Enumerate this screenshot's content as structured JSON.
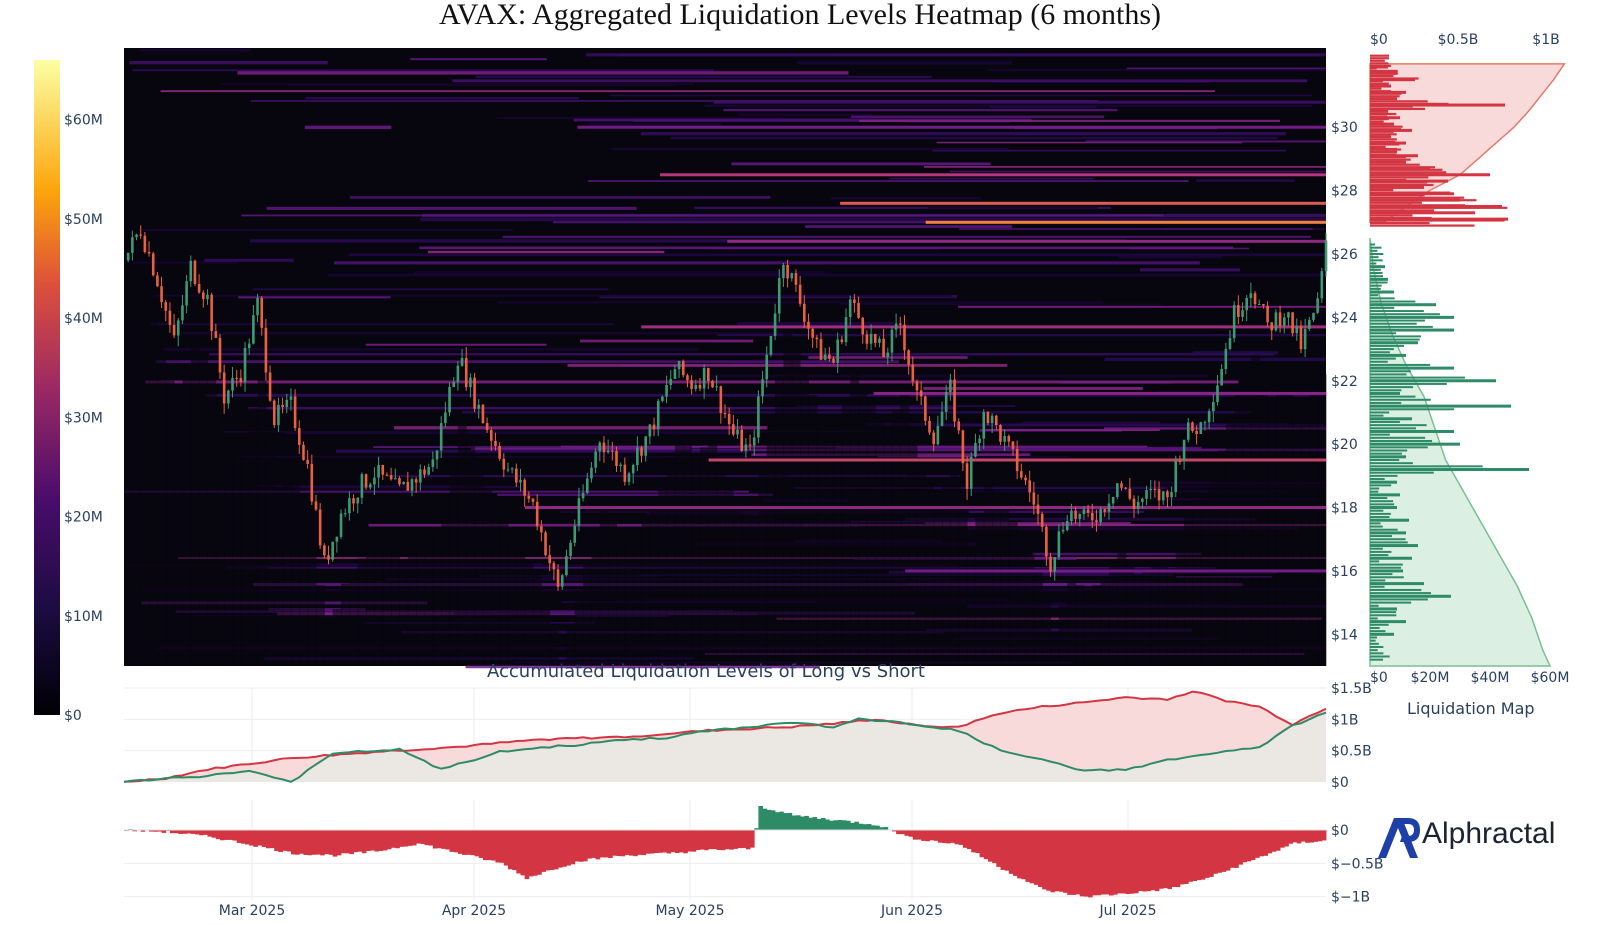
{
  "title": "AVAX: Aggregated Liquidation Levels Heatmap (6 months)",
  "subtitle": "Accumulated Liquidation Levels of Long vs Short",
  "side_panel_title": "Liquidation Map",
  "logo_text": "Alphractal",
  "colors": {
    "long": "#2e8b67",
    "short": "#d33642",
    "short_fill": "#f8dada",
    "long_fill": "#dcefe3",
    "cum_area": "#ebe8e3",
    "heat_bg": "#07050e",
    "candle_up": "#3d9a72",
    "candle_down": "#e8623f"
  },
  "chart_data": [
    {
      "type": "heatmap",
      "name": "liquidation-heatmap-with-price",
      "x_ticks": [
        "Mar 2025",
        "Apr 2025",
        "May 2025",
        "Jun 2025",
        "Jul 2025"
      ],
      "y_ticks": [
        "$14",
        "$16",
        "$18",
        "$20",
        "$22",
        "$24",
        "$26",
        "$28",
        "$30"
      ],
      "ylim": [
        13,
        32.5
      ],
      "colorbar": {
        "ticks": [
          "$0",
          "$10M",
          "$20M",
          "$30M",
          "$40M",
          "$50M",
          "$60M"
        ],
        "range": [
          0,
          66
        ],
        "colorscale": [
          "#000004",
          "#2c0b5a",
          "#6a1a8a",
          "#b5367a",
          "#ec6b43",
          "#fbb42c",
          "#fcffa4"
        ]
      },
      "price_series_key_points": [
        [
          0,
          25.8
        ],
        [
          2,
          26.8
        ],
        [
          4,
          25.2
        ],
        [
          6,
          23.2
        ],
        [
          8,
          25.6
        ],
        [
          10,
          24.6
        ],
        [
          12,
          21.5
        ],
        [
          14,
          22.3
        ],
        [
          16,
          24.4
        ],
        [
          18,
          20.8
        ],
        [
          20,
          21.2
        ],
        [
          22,
          19.3
        ],
        [
          24,
          16.2
        ],
        [
          26,
          17.8
        ],
        [
          28,
          18.6
        ],
        [
          30,
          19.1
        ],
        [
          33,
          18.5
        ],
        [
          37,
          19.4
        ],
        [
          40,
          22.8
        ],
        [
          43,
          20.8
        ],
        [
          46,
          19.2
        ],
        [
          49,
          18.1
        ],
        [
          52,
          15.4
        ],
        [
          54,
          17.5
        ],
        [
          57,
          20.2
        ],
        [
          60,
          19.1
        ],
        [
          63,
          20.4
        ],
        [
          66,
          22.4
        ],
        [
          68,
          21.9
        ],
        [
          70,
          22.3
        ],
        [
          73,
          20.3
        ],
        [
          75,
          19.7
        ],
        [
          77,
          22.8
        ],
        [
          79,
          25.9
        ],
        [
          81,
          24.5
        ],
        [
          83,
          23.0
        ],
        [
          85,
          22.6
        ],
        [
          87,
          24.5
        ],
        [
          89,
          23.5
        ],
        [
          91,
          22.8
        ],
        [
          93,
          23.8
        ],
        [
          95,
          21.5
        ],
        [
          97,
          20.3
        ],
        [
          99,
          21.7
        ],
        [
          101,
          18.8
        ],
        [
          103,
          21.1
        ],
        [
          105,
          20.3
        ],
        [
          107,
          19.3
        ],
        [
          109,
          18.2
        ],
        [
          111,
          16.3
        ],
        [
          113,
          17.9
        ],
        [
          115,
          17.6
        ],
        [
          117,
          17.9
        ],
        [
          119,
          18.8
        ],
        [
          121,
          18.1
        ],
        [
          123,
          18.4
        ],
        [
          125,
          18.3
        ],
        [
          127,
          20.3
        ],
        [
          129,
          20.6
        ],
        [
          131,
          22.0
        ],
        [
          133,
          24.1
        ],
        [
          135,
          25.0
        ],
        [
          137,
          23.7
        ],
        [
          139,
          24.2
        ],
        [
          141,
          23.1
        ],
        [
          143,
          24.4
        ],
        [
          144,
          26.2
        ]
      ],
      "hot_levels": [
        {
          "price": 27.0,
          "intensity": 0.72
        },
        {
          "price": 27.6,
          "intensity": 0.62
        },
        {
          "price": 28.5,
          "intensity": 0.5
        },
        {
          "price": 26.4,
          "intensity": 0.42
        },
        {
          "price": 23.7,
          "intensity": 0.45
        },
        {
          "price": 21.6,
          "intensity": 0.4
        },
        {
          "price": 19.5,
          "intensity": 0.55
        },
        {
          "price": 18.0,
          "intensity": 0.42
        },
        {
          "price": 16.0,
          "intensity": 0.35
        },
        {
          "price": 30.0,
          "intensity": 0.35
        }
      ]
    },
    {
      "type": "bar",
      "name": "liquidation-map",
      "orientation": "horizontal",
      "x_ticks_top": [
        "$0",
        "$0.5B",
        "$1B"
      ],
      "x_ticks_bottom": [
        "$0",
        "$20M",
        "$40M",
        "$60M"
      ],
      "xlim": [
        0,
        66
      ],
      "short_levels": [
        [
          27.1,
          46
        ],
        [
          27.3,
          35
        ],
        [
          27.5,
          44
        ],
        [
          27.7,
          30
        ],
        [
          27.9,
          28
        ],
        [
          28.1,
          18
        ],
        [
          28.3,
          26
        ],
        [
          28.5,
          40
        ],
        [
          28.7,
          20
        ],
        [
          28.9,
          12
        ],
        [
          29.1,
          16
        ],
        [
          29.3,
          9
        ],
        [
          29.5,
          12
        ],
        [
          29.7,
          7
        ],
        [
          29.9,
          14
        ],
        [
          30.1,
          8
        ],
        [
          30.3,
          10
        ],
        [
          30.5,
          6
        ],
        [
          30.7,
          45
        ],
        [
          30.9,
          9
        ],
        [
          31.1,
          12
        ],
        [
          31.3,
          7
        ],
        [
          31.5,
          15
        ],
        [
          31.7,
          9
        ],
        [
          31.9,
          6
        ]
      ],
      "long_levels": [
        [
          14.0,
          8
        ],
        [
          14.4,
          12
        ],
        [
          14.8,
          9
        ],
        [
          15.2,
          27
        ],
        [
          15.6,
          18
        ],
        [
          16.0,
          11
        ],
        [
          16.4,
          14
        ],
        [
          16.8,
          16
        ],
        [
          17.2,
          12
        ],
        [
          17.6,
          13
        ],
        [
          18.0,
          9
        ],
        [
          18.4,
          10
        ],
        [
          18.8,
          9
        ],
        [
          19.2,
          53
        ],
        [
          19.6,
          12
        ],
        [
          20.0,
          30
        ],
        [
          20.4,
          28
        ],
        [
          20.8,
          14
        ],
        [
          21.2,
          47
        ],
        [
          21.6,
          10
        ],
        [
          22.0,
          42
        ],
        [
          22.4,
          28
        ],
        [
          22.8,
          12
        ],
        [
          23.2,
          16
        ],
        [
          23.6,
          28
        ],
        [
          24.0,
          28
        ],
        [
          24.4,
          22
        ],
        [
          24.8,
          8
        ],
        [
          25.2,
          6
        ],
        [
          25.6,
          5
        ]
      ],
      "short_cumulative": [
        [
          27.0,
          0.08
        ],
        [
          27.5,
          0.2
        ],
        [
          28.0,
          0.33
        ],
        [
          28.5,
          0.5
        ],
        [
          29.0,
          0.6
        ],
        [
          29.5,
          0.7
        ],
        [
          30.0,
          0.8
        ],
        [
          30.5,
          0.88
        ],
        [
          31.0,
          0.95
        ],
        [
          31.5,
          1.02
        ],
        [
          32.0,
          1.08
        ]
      ],
      "long_cumulative": [
        [
          26.5,
          0.0
        ],
        [
          25.5,
          0.02
        ],
        [
          24.5,
          0.06
        ],
        [
          23.5,
          0.12
        ],
        [
          22.5,
          0.2
        ],
        [
          21.5,
          0.3
        ],
        [
          20.5,
          0.36
        ],
        [
          19.5,
          0.42
        ],
        [
          18.5,
          0.52
        ],
        [
          17.5,
          0.62
        ],
        [
          16.5,
          0.72
        ],
        [
          15.5,
          0.82
        ],
        [
          14.5,
          0.9
        ],
        [
          13.5,
          0.96
        ],
        [
          13.0,
          1.0
        ]
      ]
    },
    {
      "type": "line",
      "name": "accumulated-long-vs-short",
      "y_ticks": [
        "$0",
        "$0.5B",
        "$1B",
        "$1.5B"
      ],
      "ylim": [
        0,
        1.5
      ],
      "series": [
        {
          "key": "short",
          "values": [
            [
              0,
              0
            ],
            [
              5,
              0.06
            ],
            [
              10,
              0.2
            ],
            [
              20,
              0.38
            ],
            [
              30,
              0.48
            ],
            [
              40,
              0.56
            ],
            [
              50,
              0.68
            ],
            [
              60,
              0.72
            ],
            [
              70,
              0.82
            ],
            [
              80,
              0.88
            ],
            [
              85,
              0.93
            ],
            [
              90,
              1.0
            ],
            [
              95,
              0.9
            ],
            [
              100,
              0.88
            ],
            [
              105,
              1.1
            ],
            [
              110,
              1.2
            ],
            [
              115,
              1.27
            ],
            [
              120,
              1.35
            ],
            [
              125,
              1.32
            ],
            [
              128,
              1.45
            ],
            [
              132,
              1.3
            ],
            [
              136,
              1.2
            ],
            [
              140,
              0.92
            ],
            [
              144,
              1.18
            ]
          ]
        },
        {
          "key": "long",
          "values": [
            [
              0,
              0
            ],
            [
              5,
              0.05
            ],
            [
              10,
              0.1
            ],
            [
              15,
              0.18
            ],
            [
              20,
              0.0
            ],
            [
              25,
              0.45
            ],
            [
              28,
              0.48
            ],
            [
              33,
              0.52
            ],
            [
              38,
              0.2
            ],
            [
              45,
              0.48
            ],
            [
              50,
              0.55
            ],
            [
              55,
              0.6
            ],
            [
              60,
              0.68
            ],
            [
              65,
              0.7
            ],
            [
              70,
              0.82
            ],
            [
              75,
              0.88
            ],
            [
              80,
              0.95
            ],
            [
              85,
              0.88
            ],
            [
              88,
              1.0
            ],
            [
              93,
              0.95
            ],
            [
              100,
              0.82
            ],
            [
              105,
              0.5
            ],
            [
              110,
              0.35
            ],
            [
              115,
              0.18
            ],
            [
              120,
              0.2
            ],
            [
              125,
              0.35
            ],
            [
              130,
              0.45
            ],
            [
              136,
              0.55
            ],
            [
              140,
              0.9
            ],
            [
              144,
              1.1
            ]
          ]
        }
      ]
    },
    {
      "type": "area",
      "name": "long-minus-short",
      "y_ticks": [
        "$0",
        "$−0.5B",
        "$−1B"
      ],
      "ylim": [
        -1.05,
        0.45
      ],
      "values": [
        [
          0,
          0
        ],
        [
          5,
          -0.03
        ],
        [
          10,
          -0.1
        ],
        [
          15,
          -0.22
        ],
        [
          20,
          -0.35
        ],
        [
          25,
          -0.38
        ],
        [
          30,
          -0.32
        ],
        [
          35,
          -0.2
        ],
        [
          40,
          -0.35
        ],
        [
          45,
          -0.5
        ],
        [
          48,
          -0.72
        ],
        [
          52,
          -0.55
        ],
        [
          55,
          -0.45
        ],
        [
          60,
          -0.38
        ],
        [
          65,
          -0.35
        ],
        [
          70,
          -0.3
        ],
        [
          75,
          -0.28
        ],
        [
          76,
          0.35
        ],
        [
          80,
          0.22
        ],
        [
          85,
          0.15
        ],
        [
          90,
          0.08
        ],
        [
          94,
          -0.12
        ],
        [
          100,
          -0.22
        ],
        [
          105,
          -0.58
        ],
        [
          110,
          -0.9
        ],
        [
          115,
          -1.0
        ],
        [
          120,
          -0.95
        ],
        [
          125,
          -0.88
        ],
        [
          130,
          -0.7
        ],
        [
          135,
          -0.45
        ],
        [
          140,
          -0.2
        ],
        [
          144,
          -0.15
        ]
      ]
    }
  ]
}
